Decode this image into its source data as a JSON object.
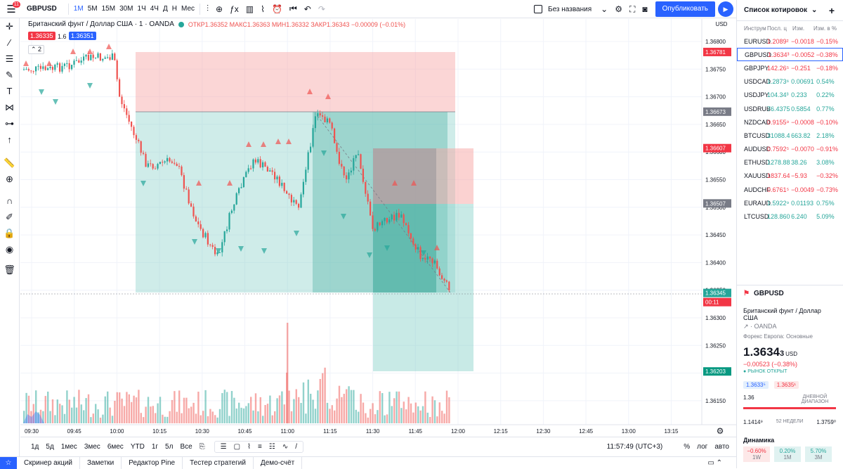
{
  "topbar": {
    "menu_badge": "11",
    "symbol": "GBPUSD",
    "timeframes": [
      "1М",
      "5М",
      "15М",
      "30М",
      "1Ч",
      "4Ч",
      "Д",
      "Н",
      "Мес"
    ],
    "active_timeframe": "1М",
    "layout_name": "Без названия",
    "publish": "Опубликовать"
  },
  "legend": {
    "title": "Британский фунт / Доллар США · 1 · OANDA",
    "ohlc": "ОТКР1.36352 МАКС1.36363 МИН1.36332 ЗАКР1.36343 −0.00009 (−0.01%)",
    "sell_price": "1.36335",
    "spread": "1.6",
    "buy_price": "1.36351",
    "collapse_count": "2"
  },
  "price_axis": {
    "currency": "USD",
    "ticks": [
      "1.36800",
      "1.36750",
      "1.36700",
      "1.36650",
      "1.36600",
      "1.36550",
      "1.36500",
      "1.36450",
      "1.36400",
      "1.36350",
      "1.36300",
      "1.36250",
      "1.36200",
      "1.36150"
    ],
    "tags": [
      {
        "value": "1.36781",
        "color": "#f23645"
      },
      {
        "value": "1.36673",
        "color": "#787b86"
      },
      {
        "value": "1.36607",
        "color": "#f23645"
      },
      {
        "value": "1.36507",
        "color": "#787b86"
      },
      {
        "value": "1.36345",
        "color": "#26a69a"
      },
      {
        "value": "00:11",
        "color": "#f23645"
      },
      {
        "value": "1.36203",
        "color": "#089981"
      }
    ]
  },
  "time_axis": {
    "ticks": [
      "09:30",
      "09:45",
      "10:00",
      "10:15",
      "10:30",
      "10:45",
      "11:00",
      "11:15",
      "11:30",
      "11:45",
      "12:00",
      "12:15",
      "12:30",
      "12:45",
      "13:00",
      "13:15"
    ]
  },
  "bottombar": {
    "ranges": [
      "1д",
      "5д",
      "1мес",
      "3мес",
      "6мес",
      "YTD",
      "1г",
      "5л",
      "Все"
    ],
    "clock": "11:57:49 (UTC+3)",
    "pct": "%",
    "log": "лог",
    "auto": "авто"
  },
  "footer": {
    "tabs": [
      "Скринер акций",
      "Заметки",
      "Редактор Pine",
      "Тестер стратегий",
      "Демо-счёт"
    ]
  },
  "watchlist": {
    "title": "Список котировок",
    "cols": [
      "Инструм",
      "Посл. ц",
      "Изм.",
      "Изм. в %"
    ],
    "rows": [
      {
        "s": "EURUSD",
        "l": "1.2089²",
        "c": "−0.0018",
        "p": "−0.15%",
        "dir": "dn"
      },
      {
        "s": "GBPUSD",
        "l": "1.3634³",
        "c": "−0.0052",
        "p": "−0.38%",
        "dir": "dn"
      },
      {
        "s": "GBPJPY",
        "l": "142.26⁵",
        "c": "−0.251",
        "p": "−0.18%",
        "dir": "dn"
      },
      {
        "s": "USDCAD",
        "l": "1.2873⁶",
        "c": "0.00691",
        "p": "0.54%",
        "dir": "up"
      },
      {
        "s": "USDJPY",
        "l": "104.34³",
        "c": "0.233",
        "p": "0.22%",
        "dir": "up"
      },
      {
        "s": "USDRUB",
        "l": "76.4375",
        "c": "0.5854",
        "p": "0.77%",
        "dir": "up"
      },
      {
        "s": "NZDCAD",
        "l": "0.9155⁹",
        "c": "−0.0008",
        "p": "−0.10%",
        "dir": "dn"
      },
      {
        "s": "BTCUSD",
        "l": "31088.4",
        "c": "663.82",
        "p": "2.18%",
        "dir": "up"
      },
      {
        "s": "AUDUSD",
        "l": "0.7592⁵",
        "c": "−0.0070",
        "p": "−0.91%",
        "dir": "dn"
      },
      {
        "s": "ETHUSD",
        "l": "1278.88",
        "c": "38.26",
        "p": "3.08%",
        "dir": "up"
      },
      {
        "s": "XAUUSD",
        "l": "1837.64",
        "c": "−5.93",
        "p": "−0.32%",
        "dir": "dn"
      },
      {
        "s": "AUDCHF",
        "l": "0.6761⁵",
        "c": "−0.0049",
        "p": "−0.73%",
        "dir": "dn"
      },
      {
        "s": "EURAUD",
        "l": "1.5922⁹",
        "c": "0.01193",
        "p": "0.75%",
        "dir": "up"
      },
      {
        "s": "LTCUSD",
        "l": "128.860",
        "c": "6.240",
        "p": "5.09%",
        "dir": "up"
      }
    ]
  },
  "details": {
    "symbol": "GBPUSD",
    "name": "Британский фунт / Доллар США",
    "exchange": "OANDA",
    "category": "Форекс Европа: Основные",
    "price_main": "1.3634",
    "price_sup": "3",
    "currency": "USD",
    "change": "−0.00523 (−0.38%)",
    "market": "РЫНОК ОТКРЫТ",
    "bid": "1.3633⁵",
    "ask": "1.3635¹",
    "day_low": "1.36",
    "day_label": "ДНЕВНОЙ ДИАПАЗОН",
    "week_low": "1.1414⁹",
    "week_label": "52 НЕДЕЛИ",
    "week_high": "1.3759⁰",
    "dyn_title": "Динамика",
    "perf": [
      {
        "v": "−0.60%",
        "l": "1W"
      },
      {
        "v": "0.20%",
        "l": "1M"
      },
      {
        "v": "5.70%",
        "l": "3M"
      }
    ]
  },
  "colors": {
    "up": "#26a69a",
    "down": "#ef5350",
    "accent": "#2962ff"
  }
}
